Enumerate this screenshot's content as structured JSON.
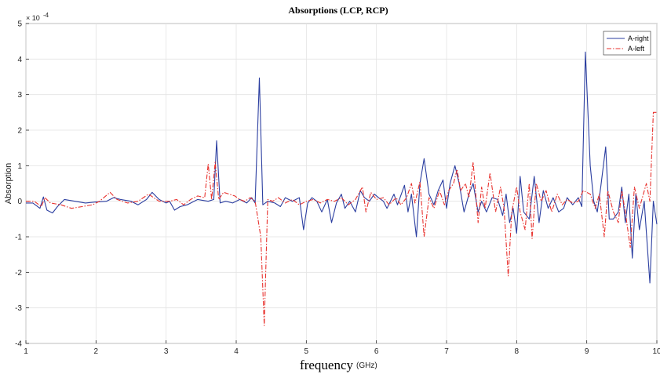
{
  "chart_data": {
    "type": "line",
    "title": "Absorptions (LCP, RCP)",
    "xlabel": "frequency",
    "xlabel_unit": "(GHz)",
    "ylabel": "Absorption",
    "y_exponent_label": "× 10",
    "y_exponent_power": "-4",
    "xlim": [
      1,
      10
    ],
    "ylim": [
      -4,
      5
    ],
    "x_ticks": [
      "1",
      "2",
      "3",
      "4",
      "5",
      "6",
      "7",
      "8",
      "9",
      "10"
    ],
    "y_ticks": [
      "-4",
      "-3",
      "-2",
      "-1",
      "0",
      "1",
      "2",
      "3",
      "4",
      "5"
    ],
    "grid": true,
    "legend_position": "top-right",
    "series": [
      {
        "name": "A-right",
        "color": "#2b3ea0",
        "style": "solid",
        "points": [
          [
            1.0,
            -0.05
          ],
          [
            1.1,
            -0.05
          ],
          [
            1.2,
            -0.2
          ],
          [
            1.25,
            0.12
          ],
          [
            1.3,
            -0.25
          ],
          [
            1.38,
            -0.33
          ],
          [
            1.45,
            -0.15
          ],
          [
            1.55,
            0.05
          ],
          [
            1.7,
            0.0
          ],
          [
            1.85,
            -0.05
          ],
          [
            2.0,
            -0.02
          ],
          [
            2.15,
            0.0
          ],
          [
            2.25,
            0.1
          ],
          [
            2.35,
            0.05
          ],
          [
            2.5,
            0.0
          ],
          [
            2.6,
            -0.1
          ],
          [
            2.72,
            0.05
          ],
          [
            2.8,
            0.25
          ],
          [
            2.9,
            0.05
          ],
          [
            3.0,
            -0.05
          ],
          [
            3.05,
            0.0
          ],
          [
            3.12,
            -0.25
          ],
          [
            3.2,
            -0.15
          ],
          [
            3.3,
            -0.1
          ],
          [
            3.45,
            0.05
          ],
          [
            3.6,
            0.0
          ],
          [
            3.68,
            0.05
          ],
          [
            3.72,
            1.7
          ],
          [
            3.77,
            -0.05
          ],
          [
            3.85,
            0.0
          ],
          [
            3.95,
            -0.05
          ],
          [
            4.05,
            0.05
          ],
          [
            4.15,
            -0.05
          ],
          [
            4.22,
            0.1
          ],
          [
            4.27,
            -0.05
          ],
          [
            4.33,
            3.47
          ],
          [
            4.38,
            -0.1
          ],
          [
            4.45,
            0.0
          ],
          [
            4.55,
            -0.05
          ],
          [
            4.63,
            -0.15
          ],
          [
            4.7,
            0.1
          ],
          [
            4.8,
            0.0
          ],
          [
            4.9,
            0.1
          ],
          [
            4.96,
            -0.8
          ],
          [
            5.02,
            -0.05
          ],
          [
            5.08,
            0.1
          ],
          [
            5.15,
            0.0
          ],
          [
            5.22,
            -0.3
          ],
          [
            5.3,
            0.05
          ],
          [
            5.36,
            -0.6
          ],
          [
            5.43,
            -0.05
          ],
          [
            5.5,
            0.2
          ],
          [
            5.55,
            -0.2
          ],
          [
            5.62,
            0.0
          ],
          [
            5.7,
            -0.3
          ],
          [
            5.77,
            0.3
          ],
          [
            5.83,
            0.1
          ],
          [
            5.9,
            0.0
          ],
          [
            5.97,
            0.2
          ],
          [
            6.03,
            0.1
          ],
          [
            6.1,
            0.0
          ],
          [
            6.15,
            -0.2
          ],
          [
            6.25,
            0.2
          ],
          [
            6.3,
            -0.1
          ],
          [
            6.4,
            0.45
          ],
          [
            6.45,
            -0.3
          ],
          [
            6.5,
            0.2
          ],
          [
            6.57,
            -1.0
          ],
          [
            6.62,
            0.5
          ],
          [
            6.68,
            1.2
          ],
          [
            6.75,
            0.2
          ],
          [
            6.82,
            -0.1
          ],
          [
            6.88,
            0.3
          ],
          [
            6.95,
            0.6
          ],
          [
            7.0,
            -0.2
          ],
          [
            7.05,
            0.5
          ],
          [
            7.12,
            1.0
          ],
          [
            7.18,
            0.5
          ],
          [
            7.25,
            -0.3
          ],
          [
            7.32,
            0.2
          ],
          [
            7.38,
            0.5
          ],
          [
            7.45,
            -0.3
          ],
          [
            7.5,
            0.0
          ],
          [
            7.57,
            -0.3
          ],
          [
            7.65,
            0.1
          ],
          [
            7.73,
            0.05
          ],
          [
            7.8,
            -0.4
          ],
          [
            7.85,
            0.2
          ],
          [
            7.9,
            -0.6
          ],
          [
            7.95,
            -0.2
          ],
          [
            8.0,
            -0.9
          ],
          [
            8.05,
            0.7
          ],
          [
            8.1,
            -0.3
          ],
          [
            8.18,
            -0.5
          ],
          [
            8.25,
            0.7
          ],
          [
            8.32,
            -0.6
          ],
          [
            8.38,
            0.3
          ],
          [
            8.45,
            -0.2
          ],
          [
            8.52,
            0.1
          ],
          [
            8.6,
            -0.3
          ],
          [
            8.67,
            -0.2
          ],
          [
            8.72,
            0.1
          ],
          [
            8.8,
            -0.1
          ],
          [
            8.88,
            0.1
          ],
          [
            8.93,
            -0.15
          ],
          [
            8.98,
            4.2
          ],
          [
            9.05,
            1.0
          ],
          [
            9.1,
            0.0
          ],
          [
            9.15,
            -0.3
          ],
          [
            9.2,
            0.4
          ],
          [
            9.27,
            1.53
          ],
          [
            9.32,
            -0.5
          ],
          [
            9.38,
            -0.5
          ],
          [
            9.45,
            -0.3
          ],
          [
            9.5,
            0.4
          ],
          [
            9.55,
            -0.6
          ],
          [
            9.6,
            0.2
          ],
          [
            9.65,
            -1.6
          ],
          [
            9.7,
            0.2
          ],
          [
            9.75,
            -0.8
          ],
          [
            9.82,
            0.0
          ],
          [
            9.9,
            -2.3
          ],
          [
            9.95,
            0.0
          ],
          [
            10.0,
            -0.65
          ]
        ]
      },
      {
        "name": "A-left",
        "color": "#e8322e",
        "style": "dashdot",
        "points": [
          [
            1.0,
            0.0
          ],
          [
            1.12,
            0.0
          ],
          [
            1.22,
            -0.15
          ],
          [
            1.27,
            0.1
          ],
          [
            1.35,
            -0.05
          ],
          [
            1.5,
            -0.1
          ],
          [
            1.65,
            -0.2
          ],
          [
            1.8,
            -0.15
          ],
          [
            1.95,
            -0.1
          ],
          [
            2.05,
            0.0
          ],
          [
            2.2,
            0.25
          ],
          [
            2.3,
            0.05
          ],
          [
            2.45,
            -0.05
          ],
          [
            2.6,
            0.0
          ],
          [
            2.75,
            0.2
          ],
          [
            2.9,
            0.0
          ],
          [
            3.05,
            0.0
          ],
          [
            3.15,
            0.05
          ],
          [
            3.25,
            -0.1
          ],
          [
            3.35,
            0.05
          ],
          [
            3.45,
            0.15
          ],
          [
            3.55,
            0.1
          ],
          [
            3.6,
            1.05
          ],
          [
            3.65,
            0.05
          ],
          [
            3.7,
            1.1
          ],
          [
            3.75,
            0.05
          ],
          [
            3.82,
            0.25
          ],
          [
            3.9,
            0.2
          ],
          [
            3.98,
            0.15
          ],
          [
            4.05,
            0.05
          ],
          [
            4.12,
            0.0
          ],
          [
            4.2,
            0.1
          ],
          [
            4.27,
            0.0
          ],
          [
            4.35,
            -1.0
          ],
          [
            4.4,
            -3.5
          ],
          [
            4.45,
            0.05
          ],
          [
            4.52,
            0.0
          ],
          [
            4.6,
            0.1
          ],
          [
            4.7,
            -0.05
          ],
          [
            4.8,
            0.05
          ],
          [
            4.9,
            -0.1
          ],
          [
            5.0,
            0.0
          ],
          [
            5.1,
            0.05
          ],
          [
            5.2,
            -0.05
          ],
          [
            5.3,
            0.05
          ],
          [
            5.4,
            0.0
          ],
          [
            5.5,
            0.1
          ],
          [
            5.6,
            -0.1
          ],
          [
            5.7,
            0.05
          ],
          [
            5.8,
            0.4
          ],
          [
            5.85,
            -0.3
          ],
          [
            5.92,
            0.25
          ],
          [
            6.0,
            0.05
          ],
          [
            6.1,
            0.1
          ],
          [
            6.18,
            -0.1
          ],
          [
            6.28,
            0.1
          ],
          [
            6.35,
            -0.1
          ],
          [
            6.43,
            0.1
          ],
          [
            6.5,
            0.5
          ],
          [
            6.55,
            -0.05
          ],
          [
            6.62,
            0.55
          ],
          [
            6.68,
            -1.0
          ],
          [
            6.75,
            0.1
          ],
          [
            6.82,
            -0.2
          ],
          [
            6.9,
            0.3
          ],
          [
            6.97,
            -0.1
          ],
          [
            7.03,
            0.3
          ],
          [
            7.1,
            0.5
          ],
          [
            7.15,
            0.9
          ],
          [
            7.2,
            0.3
          ],
          [
            7.27,
            0.5
          ],
          [
            7.32,
            0.1
          ],
          [
            7.38,
            1.1
          ],
          [
            7.45,
            -0.6
          ],
          [
            7.5,
            0.4
          ],
          [
            7.55,
            -0.2
          ],
          [
            7.62,
            0.8
          ],
          [
            7.7,
            -0.3
          ],
          [
            7.77,
            0.4
          ],
          [
            7.82,
            -0.2
          ],
          [
            7.88,
            -2.1
          ],
          [
            7.93,
            -0.3
          ],
          [
            8.0,
            0.4
          ],
          [
            8.05,
            -0.3
          ],
          [
            8.12,
            -0.8
          ],
          [
            8.18,
            0.5
          ],
          [
            8.22,
            -1.05
          ],
          [
            8.28,
            0.5
          ],
          [
            8.35,
            0.0
          ],
          [
            8.42,
            0.3
          ],
          [
            8.5,
            -0.3
          ],
          [
            8.58,
            0.2
          ],
          [
            8.65,
            -0.1
          ],
          [
            8.72,
            0.05
          ],
          [
            8.8,
            -0.05
          ],
          [
            8.88,
            0.0
          ],
          [
            8.95,
            0.3
          ],
          [
            9.05,
            0.2
          ],
          [
            9.12,
            -0.2
          ],
          [
            9.18,
            0.2
          ],
          [
            9.25,
            -1.0
          ],
          [
            9.3,
            0.3
          ],
          [
            9.38,
            -0.3
          ],
          [
            9.45,
            -0.6
          ],
          [
            9.5,
            0.3
          ],
          [
            9.55,
            -0.3
          ],
          [
            9.62,
            -1.3
          ],
          [
            9.68,
            0.4
          ],
          [
            9.75,
            -0.2
          ],
          [
            9.85,
            0.5
          ],
          [
            9.9,
            0.0
          ],
          [
            9.95,
            2.5
          ],
          [
            10.0,
            2.5
          ]
        ]
      }
    ]
  }
}
